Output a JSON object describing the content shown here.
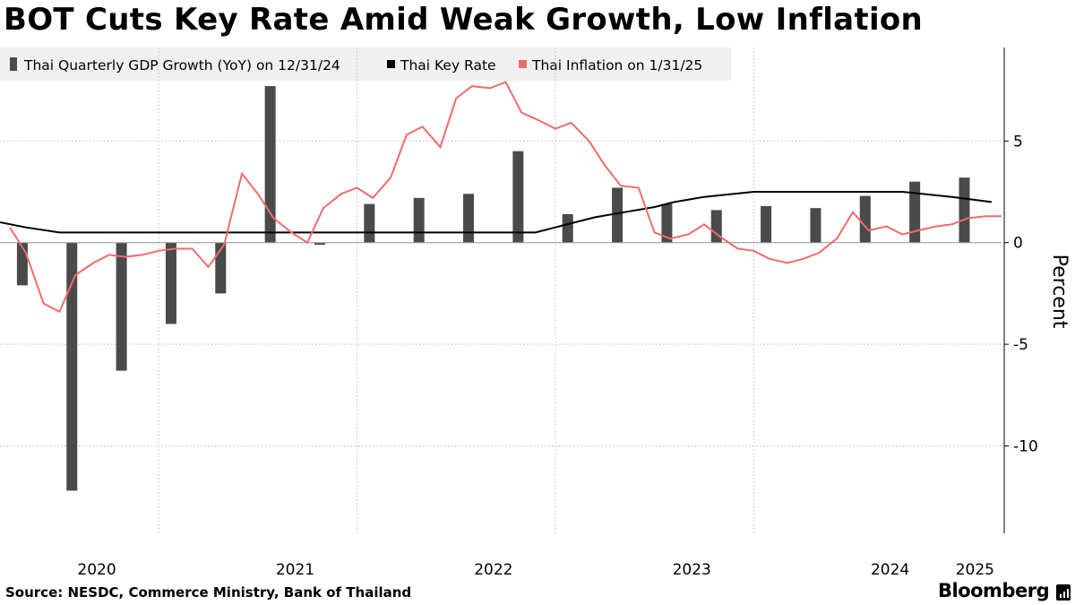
{
  "title": "BOT Cuts Key Rate Amid Weak Growth, Low Inflation",
  "source": "Source: NESDC, Commerce Ministry, Bank of Thailand",
  "brand": "Bloomberg",
  "colors": {
    "bars": "#4a4a4a",
    "key_rate": "#000000",
    "inflation": "#f26b6b",
    "grid": "#bdbdbd",
    "legend_bg": "#f0f0f0"
  },
  "chart_data": {
    "type": "bar+line",
    "ylabel": "Percent",
    "ylim": [
      -14.3,
      9.6
    ],
    "yticks": [
      5,
      0,
      -5,
      -10
    ],
    "ytick_labels": [
      "5",
      "0",
      "-5",
      "-10"
    ],
    "xlim": [
      2019.95,
      2025.0
    ],
    "xtick_labels": [
      "2020",
      "2021",
      "2022",
      "2023",
      "2024",
      "2025"
    ],
    "xtick_positions": [
      2020.0,
      2021.0,
      2022.0,
      2023.0,
      2024.0,
      2025.0
    ],
    "grid_lines_x": [
      2020.75,
      2021.75,
      2022.75,
      2023.75
    ],
    "legend": [
      {
        "label": "Thai Quarterly GDP Growth (YoY) on 12/31/24",
        "kind": "bar"
      },
      {
        "label": "Thai Key Rate",
        "kind": "line"
      },
      {
        "label": "Thai Inflation on 1/31/25",
        "kind": "line"
      }
    ],
    "series": [
      {
        "name": "Thai Quarterly GDP Growth (YoY) on 12/31/24",
        "type": "bar",
        "quarters": [
          "2020Q1",
          "2020Q2",
          "2020Q3",
          "2020Q4",
          "2021Q1",
          "2021Q2",
          "2021Q3",
          "2021Q4",
          "2022Q1",
          "2022Q2",
          "2022Q3",
          "2022Q4",
          "2023Q1",
          "2023Q2",
          "2023Q3",
          "2023Q4",
          "2024Q1",
          "2024Q2",
          "2024Q3",
          "2024Q4"
        ],
        "x": [
          2020.0625,
          2020.3125,
          2020.5625,
          2020.8125,
          2021.0625,
          2021.3125,
          2021.5625,
          2021.8125,
          2022.0625,
          2022.3125,
          2022.5625,
          2022.8125,
          2023.0625,
          2023.3125,
          2023.5625,
          2023.8125,
          2024.0625,
          2024.3125,
          2024.5625,
          2024.8125
        ],
        "values": [
          -2.1,
          -12.2,
          -6.3,
          -4.0,
          -2.5,
          7.7,
          -0.1,
          1.9,
          2.2,
          2.4,
          4.5,
          1.4,
          2.7,
          1.9,
          1.6,
          1.8,
          1.7,
          2.3,
          3.0,
          3.2
        ]
      },
      {
        "name": "Thai Key Rate",
        "type": "line",
        "x": [
          2019.95,
          2020.08,
          2020.25,
          2020.5,
          2021.0,
          2021.5,
          2021.95,
          2022.05,
          2022.15,
          2022.25,
          2022.35,
          2022.5,
          2022.65,
          2022.75,
          2022.85,
          2022.95,
          2023.1,
          2023.25,
          2023.35,
          2023.5,
          2023.75,
          2024.0,
          2024.2,
          2024.3,
          2024.5,
          2024.75,
          2024.95
        ],
        "values": [
          1.0,
          0.75,
          0.5,
          0.5,
          0.5,
          0.5,
          0.5,
          0.5,
          0.5,
          0.5,
          0.5,
          0.5,
          0.5,
          0.75,
          1.0,
          1.25,
          1.5,
          1.75,
          2.0,
          2.25,
          2.5,
          2.5,
          2.5,
          2.5,
          2.5,
          2.25,
          2.0
        ]
      },
      {
        "name": "Thai Inflation on 1/31/25",
        "type": "line",
        "x": [
          2020.0,
          2020.08,
          2020.17,
          2020.25,
          2020.33,
          2020.42,
          2020.5,
          2020.58,
          2020.67,
          2020.75,
          2020.83,
          2020.92,
          2021.0,
          2021.08,
          2021.17,
          2021.25,
          2021.33,
          2021.42,
          2021.5,
          2021.58,
          2021.67,
          2021.75,
          2021.83,
          2021.92,
          2022.0,
          2022.08,
          2022.17,
          2022.25,
          2022.33,
          2022.42,
          2022.5,
          2022.58,
          2022.67,
          2022.75,
          2022.83,
          2022.92,
          2023.0,
          2023.08,
          2023.17,
          2023.25,
          2023.33,
          2023.42,
          2023.5,
          2023.58,
          2023.67,
          2023.75,
          2023.83,
          2023.92,
          2024.0,
          2024.08,
          2024.17,
          2024.25,
          2024.33,
          2024.42,
          2024.5,
          2024.58,
          2024.67,
          2024.75,
          2024.83,
          2024.92,
          2025.0
        ],
        "values": [
          0.74,
          -0.5,
          -3.0,
          -3.4,
          -1.6,
          -1.0,
          -0.6,
          -0.7,
          -0.6,
          -0.4,
          -0.3,
          -0.3,
          -1.2,
          -0.1,
          3.4,
          2.4,
          1.2,
          0.5,
          0.0,
          1.7,
          2.4,
          2.7,
          2.2,
          3.2,
          5.3,
          5.7,
          4.7,
          7.1,
          7.7,
          7.6,
          7.9,
          6.4,
          6.0,
          5.6,
          5.9,
          5.0,
          3.8,
          2.8,
          2.7,
          0.5,
          0.2,
          0.4,
          0.9,
          0.3,
          -0.3,
          -0.4,
          -0.8,
          -1.0,
          -0.8,
          -0.5,
          0.2,
          1.5,
          0.6,
          0.8,
          0.4,
          0.6,
          0.8,
          0.9,
          1.2,
          1.3,
          1.3
        ]
      }
    ]
  }
}
